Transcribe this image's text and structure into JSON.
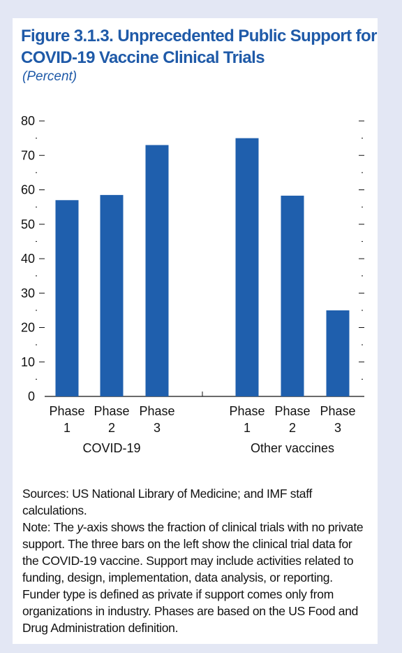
{
  "figure": {
    "title": "Figure 3.1.3.  Unprecedented Public Support for COVID-19 Vaccine Clinical Trials",
    "subtitle": "(Percent)"
  },
  "colors": {
    "bar": "#1f5fad",
    "title": "#1f5aa8",
    "background": "#e3e7f4"
  },
  "chart_data": {
    "type": "bar",
    "title": "",
    "ylim": [
      0,
      80
    ],
    "yticks": [
      "0",
      "10",
      "20",
      "30",
      "40",
      "50",
      "60",
      "70",
      "80"
    ],
    "groups": [
      {
        "name": "COVID-19",
        "categories": [
          [
            "Phase",
            "1"
          ],
          [
            "Phase",
            "2"
          ],
          [
            "Phase",
            "3"
          ]
        ],
        "values": [
          57,
          58.5,
          73
        ]
      },
      {
        "name": "Other vaccines",
        "categories": [
          [
            "Phase",
            "1"
          ],
          [
            "Phase",
            "2"
          ],
          [
            "Phase",
            "3"
          ]
        ],
        "values": [
          75,
          58.3,
          25
        ]
      }
    ]
  },
  "notes": {
    "sources": "Sources: US National Library of Medicine; and IMF staff calculations.",
    "note_prefix": "Note: The ",
    "note_axis": "y",
    "note_rest": "-axis shows the fraction of clinical trials with no private support. The three bars on the left show the clinical trial data for the COVID-19 vaccine. Support may include activities related to funding, design, implementation, data analysis, or reporting. Funder type is defined as private if support comes only from organizations in industry. Phases are based on the US Food and Drug Administration definition."
  }
}
